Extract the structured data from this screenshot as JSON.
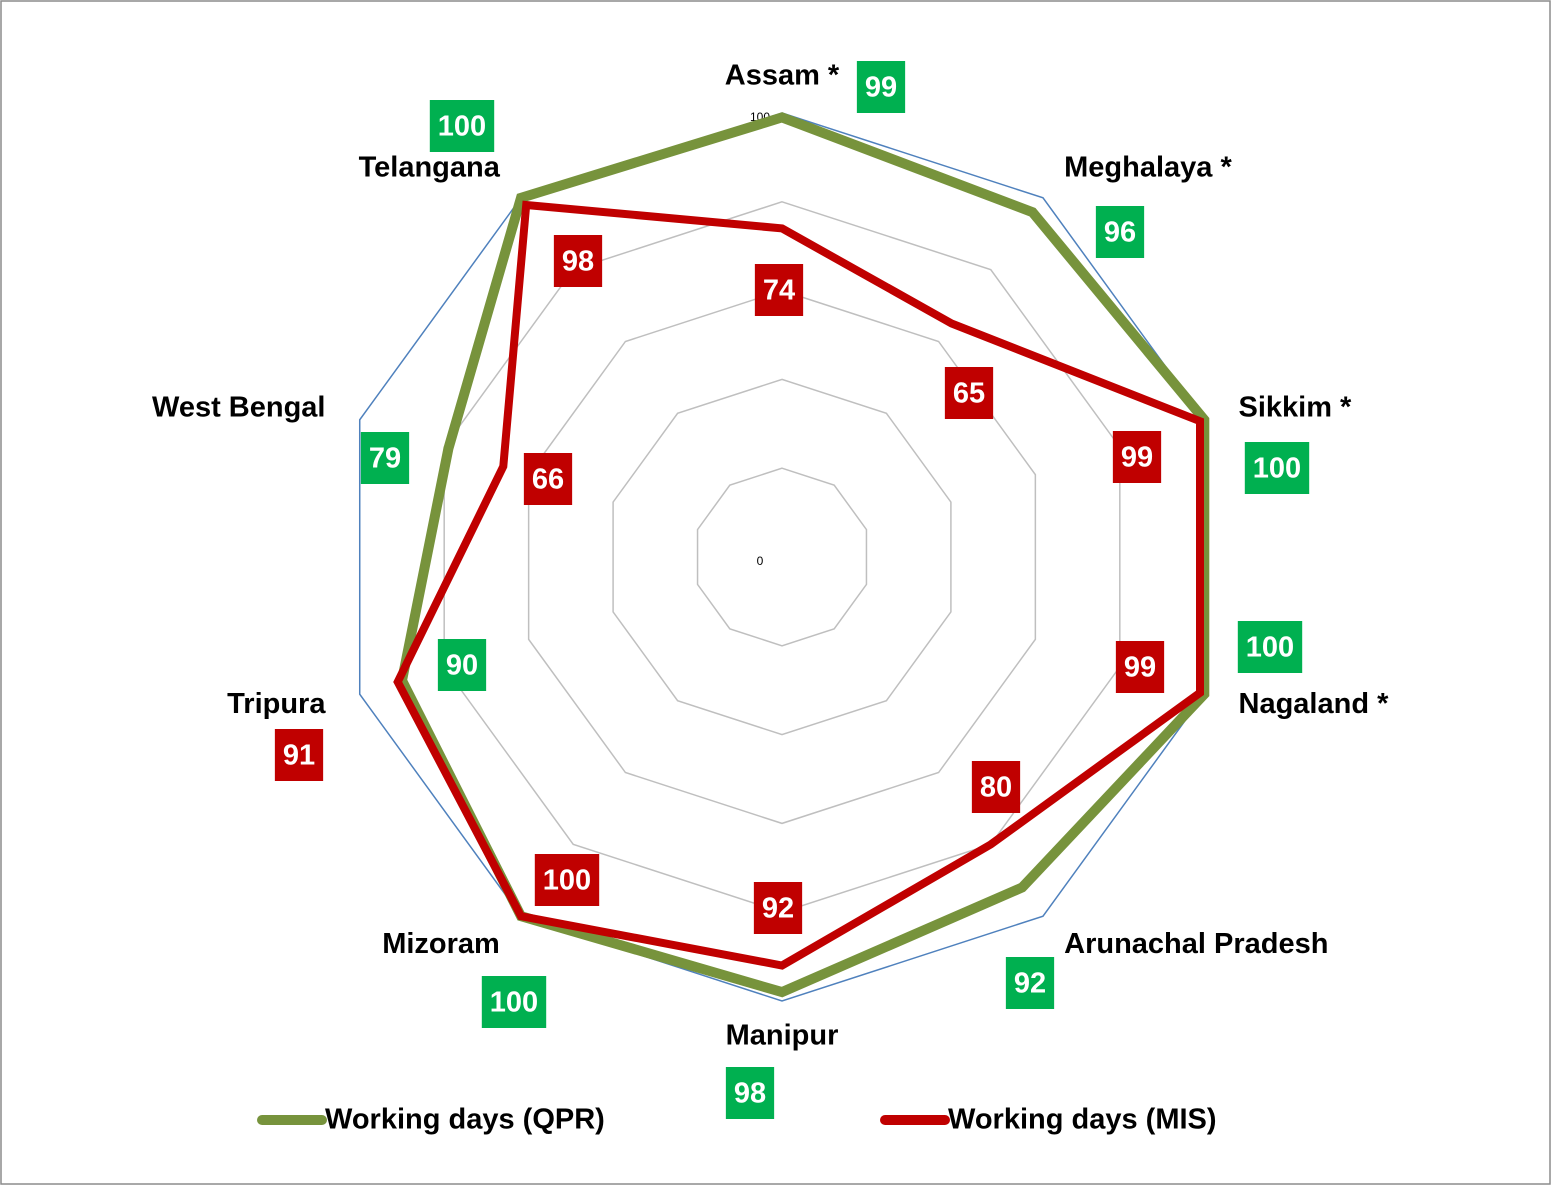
{
  "chart_data": {
    "type": "radar",
    "categories": [
      "Assam *",
      "Meghalaya *",
      "Sikkim *",
      "Nagaland *",
      "Arunachal Pradesh",
      "Manipur",
      "Mizoram",
      "Tripura",
      "West Bengal",
      "Telangana"
    ],
    "series": [
      {
        "name": "Working days (QPR)",
        "color": "#77933c",
        "label_color": "#00b050",
        "values": [
          99,
          96,
          100,
          100,
          92,
          98,
          100,
          90,
          79,
          100
        ]
      },
      {
        "name": "Working days (MIS)",
        "color": "#c00000",
        "label_color": "#c00000",
        "values": [
          74,
          65,
          99,
          99,
          80,
          92,
          100,
          91,
          66,
          98
        ]
      }
    ],
    "ylim": [
      0,
      100
    ],
    "yticks": [
      0,
      20,
      40,
      60,
      80,
      100
    ],
    "grid": true,
    "legend": "bottom"
  }
}
